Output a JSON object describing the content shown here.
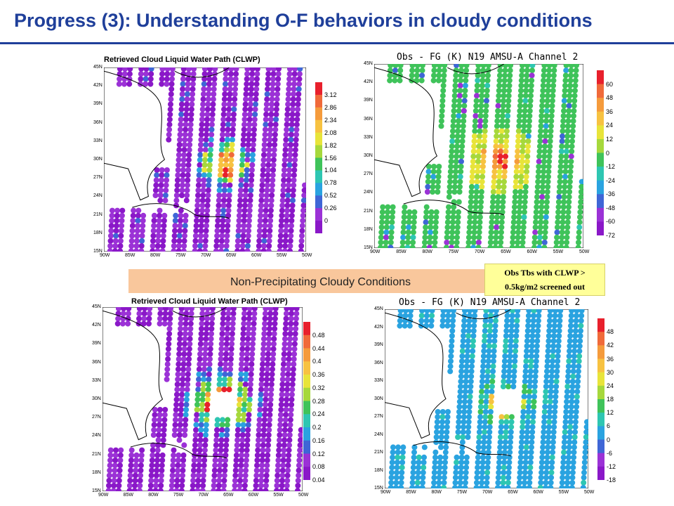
{
  "title": "Progress (3): Understanding O-F behaviors in cloudy conditions",
  "banner": "Non-Precipitating Cloudy Conditions",
  "note": {
    "line1": "Obs Tbs with CLWP >",
    "line2": "0.5kg/m2 screened out"
  },
  "panels": [
    {
      "label": "Retrieved Cloud Liquid Water Path (CLWP)",
      "kind": "clwp1",
      "colorbar": [
        "3.12",
        "2.86",
        "2.34",
        "2.08",
        "1.82",
        "1.56",
        "1.04",
        "0.78",
        "0.52",
        "0.26",
        "0"
      ],
      "colors": [
        "#e8202c",
        "#f06a3a",
        "#f59b3c",
        "#f7c241",
        "#e8e43a",
        "#a6d83c",
        "#3fc35a",
        "#2ec6b2",
        "#2aa3e0",
        "#3f66d6",
        "#9b32d6",
        "#8a18c8"
      ]
    },
    {
      "label": "Obs - FG (K) N19 AMSU-A Channel 2",
      "kind": "of1",
      "colorbar": [
        "60",
        "48",
        "36",
        "24",
        "12",
        "0",
        "-12",
        "-24",
        "-36",
        "-48",
        "-60",
        "-72"
      ],
      "colors": [
        "#e8202c",
        "#f06a3a",
        "#f59b3c",
        "#f7c241",
        "#e8e43a",
        "#a6d83c",
        "#3fc35a",
        "#2ec6b2",
        "#2aa3e0",
        "#3f66d6",
        "#9b32d6",
        "#8a18c8"
      ]
    },
    {
      "label": "Retrieved Cloud Liquid Water Path (CLWP)",
      "kind": "clwp2",
      "colorbar": [
        "0.48",
        "0.44",
        "0.4",
        "0.36",
        "0.32",
        "0.28",
        "0.24",
        "0.2",
        "0.16",
        "0.12",
        "0.08",
        "0.04"
      ],
      "colors": [
        "#e8202c",
        "#f06a3a",
        "#f59b3c",
        "#f7c241",
        "#e8e43a",
        "#a6d83c",
        "#3fc35a",
        "#2ec6b2",
        "#2aa3e0",
        "#3f66d6",
        "#9b32d6",
        "#8a18c8"
      ]
    },
    {
      "label": "Obs - FG (K) N19 AMSU-A Channel 2",
      "kind": "of2",
      "colorbar": [
        "48",
        "42",
        "36",
        "30",
        "24",
        "18",
        "12",
        "6",
        "0",
        "-6",
        "-12",
        "-18"
      ],
      "colors": [
        "#e8202c",
        "#f06a3a",
        "#f59b3c",
        "#f7c241",
        "#e8e43a",
        "#a6d83c",
        "#3fc35a",
        "#2ec6b2",
        "#2aa3e0",
        "#3f66d6",
        "#9b32d6",
        "#8a18c8"
      ]
    }
  ],
  "lat_labels": [
    "45N",
    "42N",
    "39N",
    "36N",
    "33N",
    "30N",
    "27N",
    "24N",
    "21N",
    "18N",
    "15N"
  ],
  "lon_labels": [
    "90W",
    "85W",
    "80W",
    "75W",
    "70W",
    "65W",
    "60W",
    "55W",
    "50W"
  ]
}
